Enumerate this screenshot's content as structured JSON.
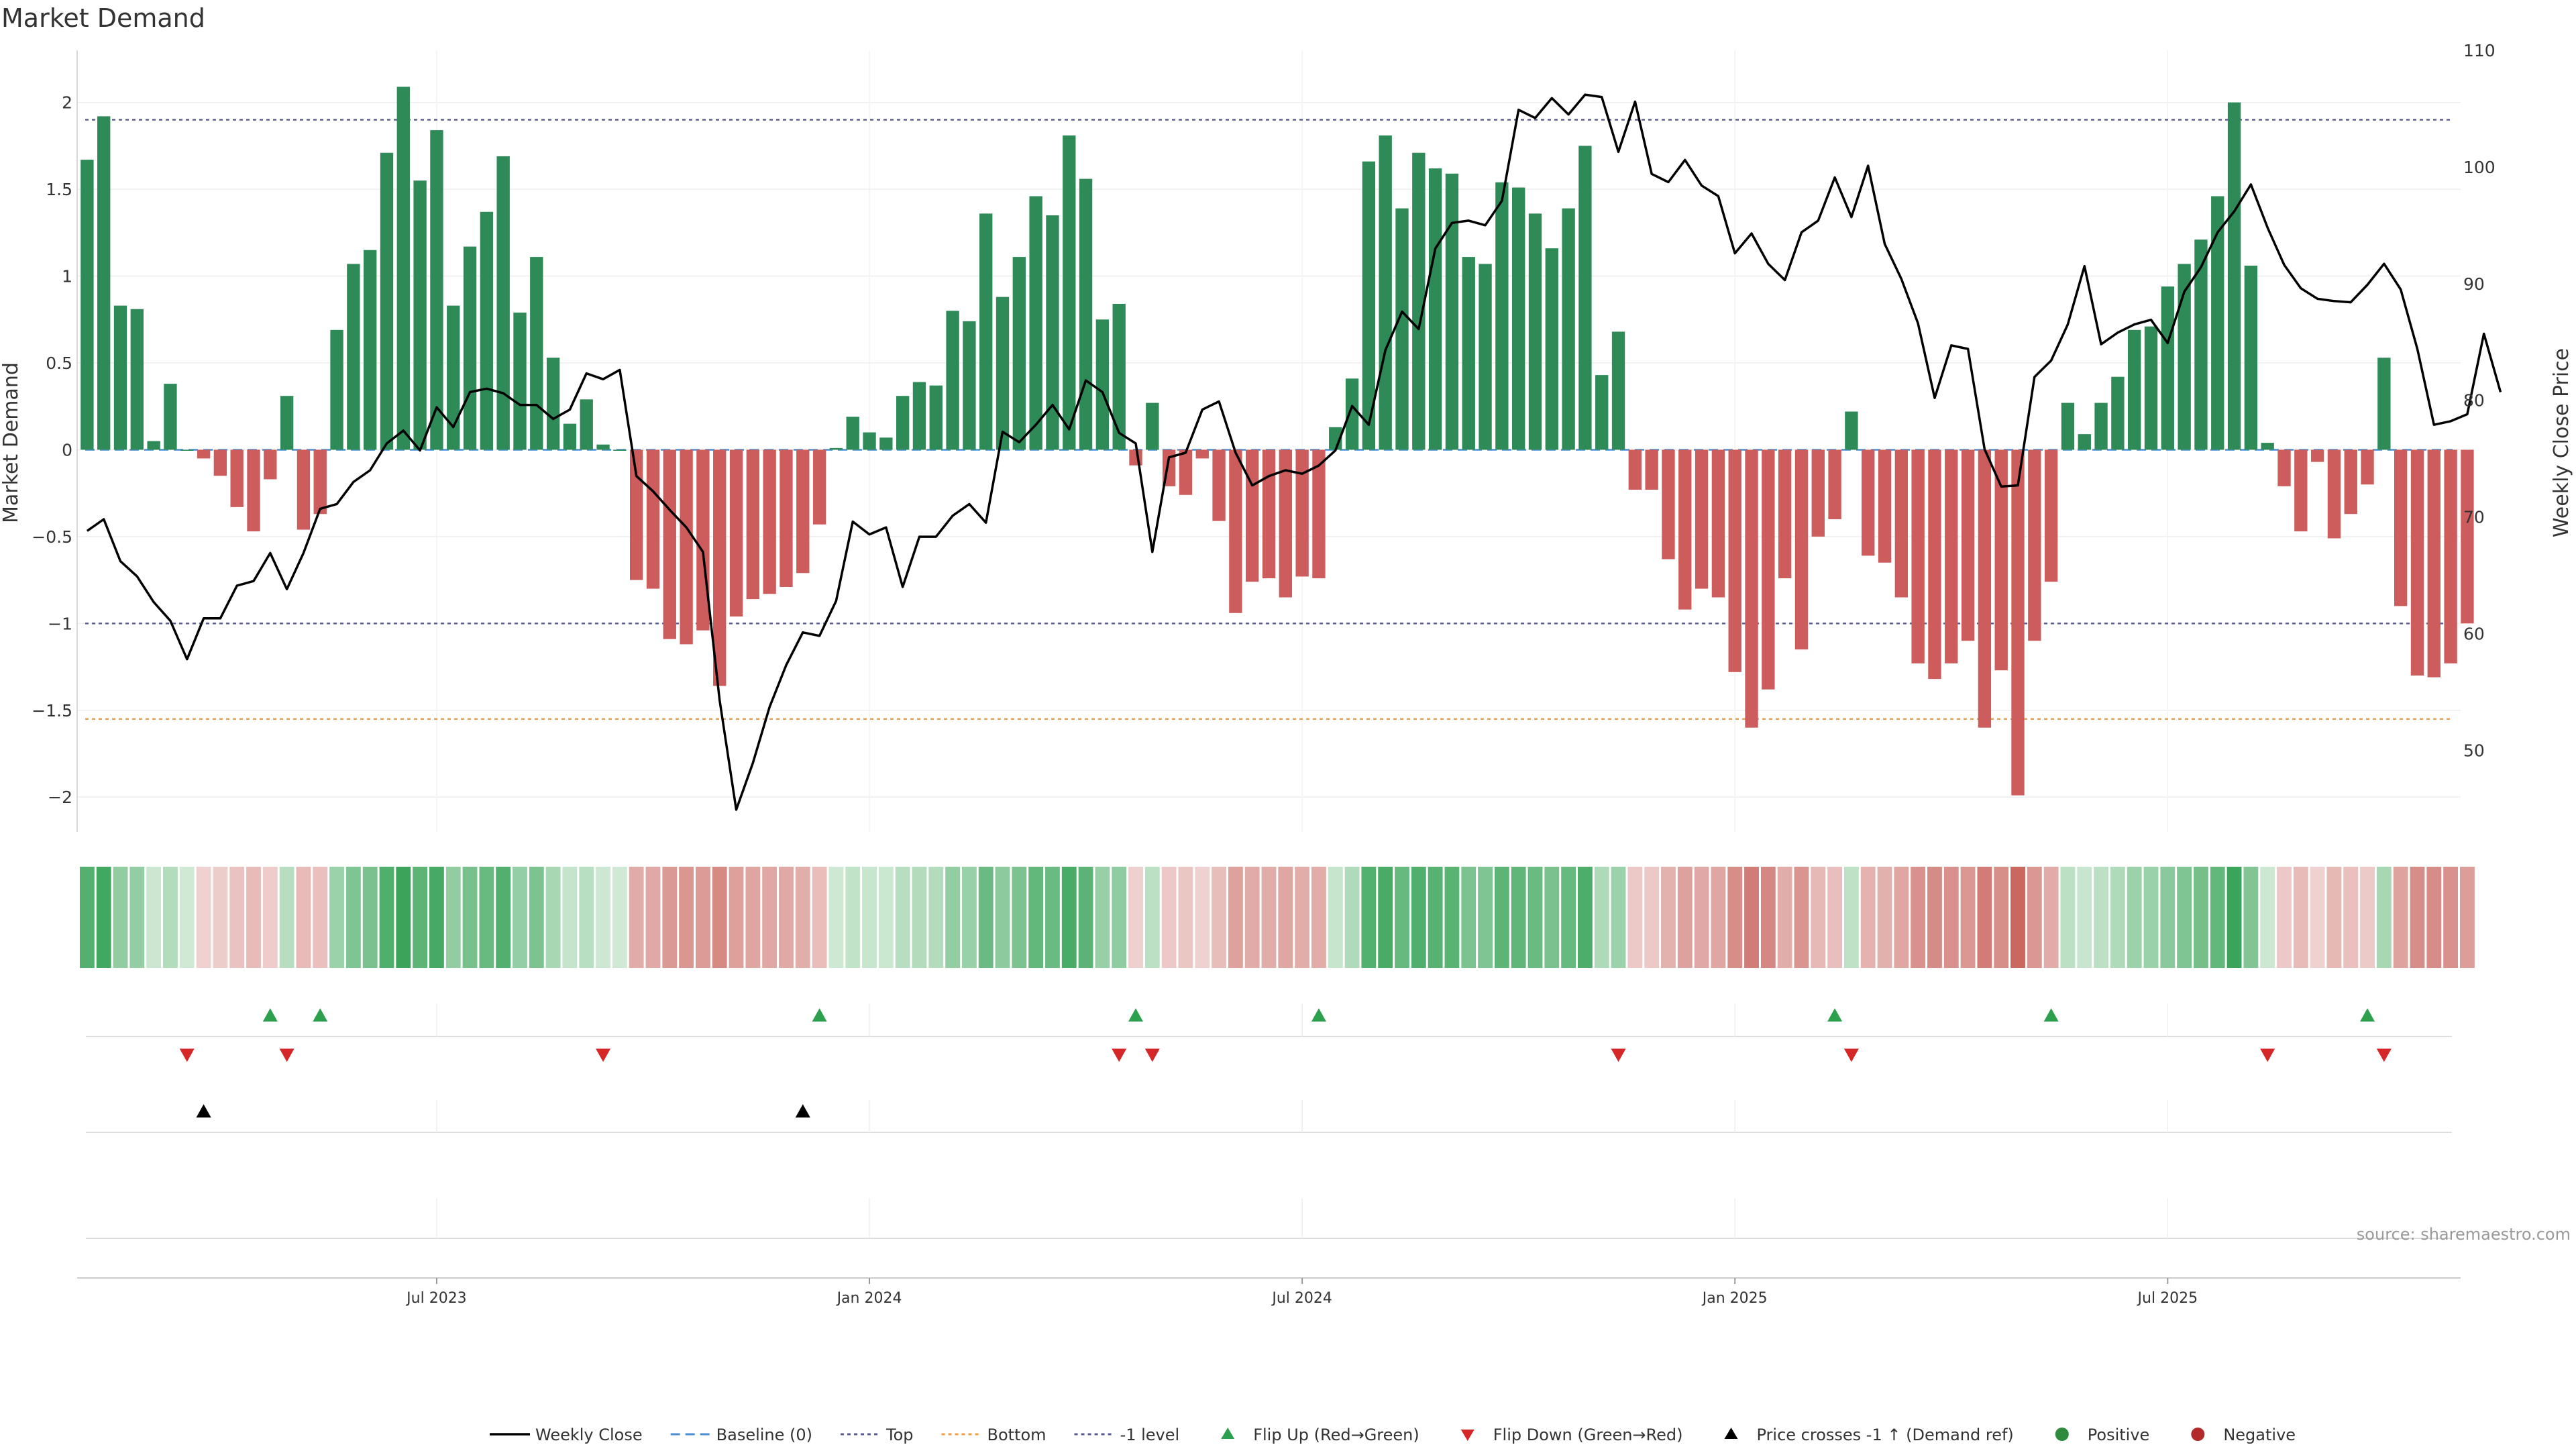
{
  "chart_data": {
    "type": "bar",
    "title": "Market Demand",
    "ylabel_left": "Market Demand",
    "ylabel_right": "Weekly Close Price",
    "ylim_left": [
      -2.2,
      2.3
    ],
    "ylim_right": [
      43,
      110
    ],
    "yticks_left": [
      {
        "v": 2,
        "label": "2"
      },
      {
        "v": 1.5,
        "label": "1.5"
      },
      {
        "v": 1,
        "label": "1"
      },
      {
        "v": 0.5,
        "label": "0.5"
      },
      {
        "v": 0,
        "label": "0"
      },
      {
        "v": -0.5,
        "label": "−0.5"
      },
      {
        "v": -1,
        "label": "−1"
      },
      {
        "v": -1.5,
        "label": "−1.5"
      },
      {
        "v": -2,
        "label": "−2"
      }
    ],
    "yticks_right": [
      {
        "v": 110,
        "label": "110"
      },
      {
        "v": 100,
        "label": "100"
      },
      {
        "v": 90,
        "label": "90"
      },
      {
        "v": 80,
        "label": "80"
      },
      {
        "v": 70,
        "label": "70"
      },
      {
        "v": 60,
        "label": "60"
      },
      {
        "v": 50,
        "label": "50"
      }
    ],
    "x_ticks": [
      {
        "week": 21,
        "label": "Jul 2023"
      },
      {
        "week": 47,
        "label": "Jan 2024"
      },
      {
        "week": 73,
        "label": "Jul 2024"
      },
      {
        "week": 99,
        "label": "Jan 2025"
      },
      {
        "week": 125,
        "label": "Jul 2025"
      }
    ],
    "x_range": [
      -0.6,
      142.6
    ],
    "ref_lines": {
      "top": 1.9,
      "baseline": 0,
      "bottom": -1.55,
      "minus_one": -1
    },
    "demand": [
      1.67,
      1.92,
      0.83,
      0.81,
      0.05,
      0.38,
      0,
      -0.05,
      -0.15,
      -0.33,
      -0.47,
      -0.17,
      0.31,
      -0.46,
      -0.37,
      0.69,
      1.07,
      1.15,
      1.71,
      2.09,
      1.55,
      1.84,
      0.83,
      1.17,
      1.37,
      1.69,
      0.79,
      1.11,
      0.53,
      0.15,
      0.29,
      0.03,
      0,
      -0.75,
      -0.8,
      -1.09,
      -1.12,
      -1.04,
      -1.36,
      -0.96,
      -0.86,
      -0.83,
      -0.79,
      -0.71,
      -0.43,
      0.01,
      0.19,
      0.1,
      0.07,
      0.31,
      0.39,
      0.37,
      0.8,
      0.74,
      1.36,
      0.88,
      1.11,
      1.46,
      1.35,
      1.81,
      1.56,
      0.75,
      0.84,
      -0.09,
      0.27,
      -0.21,
      -0.26,
      -0.05,
      -0.41,
      -0.94,
      -0.76,
      -0.74,
      -0.85,
      -0.73,
      -0.74,
      0.13,
      0.41,
      1.66,
      1.81,
      1.39,
      1.71,
      1.62,
      1.59,
      1.11,
      1.07,
      1.54,
      1.51,
      1.36,
      1.16,
      1.39,
      1.75,
      0.43,
      0.68,
      -0.23,
      -0.23,
      -0.63,
      -0.92,
      -0.8,
      -0.85,
      -1.28,
      -1.6,
      -1.38,
      -0.74,
      -1.15,
      -0.5,
      -0.4,
      0.22,
      -0.61,
      -0.65,
      -0.85,
      -1.23,
      -1.32,
      -1.23,
      -1.1,
      -1.6,
      -1.27,
      -1.99,
      -1.1,
      -0.76,
      0.27,
      0.09,
      0.27,
      0.42,
      0.69,
      0.71,
      0.94,
      1.07,
      1.21,
      1.46,
      2.0,
      1.06,
      0.04,
      -0.21,
      -0.47,
      -0.07,
      -0.51,
      -0.37,
      -0.2,
      0.53,
      -0.9,
      -1.3,
      -1.31,
      -1.23,
      -1.0
    ],
    "weekly_close": [
      68.8,
      69.8,
      66.2,
      64.9,
      62.7,
      61.1,
      57.8,
      61.3,
      61.3,
      64.1,
      64.5,
      66.9,
      63.8,
      66.9,
      70.7,
      71.1,
      73.0,
      74.0,
      76.3,
      77.4,
      75.7,
      79.4,
      77.7,
      80.7,
      81.0,
      80.6,
      79.6,
      79.6,
      78.4,
      79.2,
      82.3,
      81.8,
      82.6,
      73.5,
      72.2,
      70.6,
      69.1,
      67.0,
      54.3,
      44.9,
      48.9,
      53.7,
      57.3,
      60.1,
      59.8,
      62.8,
      69.6,
      68.5,
      69.1,
      64.0,
      68.3,
      68.3,
      70.1,
      71.1,
      69.5,
      77.3,
      76.4,
      77.9,
      79.6,
      77.5,
      81.7,
      80.7,
      77.2,
      76.3,
      67.0,
      75.1,
      75.5,
      79.2,
      79.9,
      75.5,
      72.7,
      73.5,
      74.0,
      73.7,
      74.4,
      75.7,
      79.5,
      77.9,
      84.3,
      87.6,
      86.1,
      93.0,
      95.2,
      95.4,
      95.0,
      97.1,
      104.9,
      104.2,
      105.9,
      104.5,
      106.2,
      106.0,
      101.3,
      105.6,
      99.4,
      98.7,
      100.6,
      98.4,
      97.5,
      92.6,
      94.3,
      91.7,
      90.3,
      94.4,
      95.4,
      99.1,
      95.7,
      100.1,
      93.4,
      90.4,
      86.6,
      80.2,
      84.7,
      84.4,
      75.8,
      72.6,
      72.7,
      82.0,
      83.4,
      86.5,
      91.5,
      84.8,
      85.8,
      86.5,
      86.9,
      84.9,
      89.3,
      91.4,
      94.4,
      96.2,
      98.5,
      94.8,
      91.6,
      89.6,
      88.7,
      88.5,
      88.4,
      89.9,
      91.7,
      89.5,
      84.4,
      77.9,
      78.2,
      78.8,
      85.7,
      80.7
    ],
    "flip_up_weeks": [
      11,
      14,
      44,
      63,
      74,
      105,
      118,
      137
    ],
    "flip_down_weeks": [
      6,
      12,
      31,
      62,
      64,
      92,
      106,
      131,
      138
    ],
    "price_cross_weeks": [
      7,
      43
    ],
    "legend": [
      {
        "label": "Weekly Close",
        "symbol": "line",
        "color": "#000000"
      },
      {
        "label": "Baseline (0)",
        "symbol": "dash",
        "color": "#4c8fd1"
      },
      {
        "label": "Top",
        "symbol": "dot",
        "color": "#5b5d9a"
      },
      {
        "label": "Bottom",
        "symbol": "dot",
        "color": "#f0a04b"
      },
      {
        "label": "-1 level",
        "symbol": "dot",
        "color": "#5b5d9a"
      },
      {
        "label": "Flip Up (Red→Green)",
        "symbol": "tri-up",
        "color": "#2ca04c"
      },
      {
        "label": "Flip Down (Green→Red)",
        "symbol": "tri-down",
        "color": "#d62728"
      },
      {
        "label": "Price crosses -1 ↑ (Demand ref)",
        "symbol": "tri-up",
        "color": "#000000"
      },
      {
        "label": "Positive",
        "symbol": "circle",
        "color": "#2e8b3e"
      },
      {
        "label": "Negative",
        "symbol": "circle",
        "color": "#b22a2a"
      }
    ],
    "source": "source: sharemaestro.com"
  },
  "colors": {
    "positive_bar": "#2e8b57",
    "negative_bar": "#cd5c5c",
    "line": "#000000"
  }
}
